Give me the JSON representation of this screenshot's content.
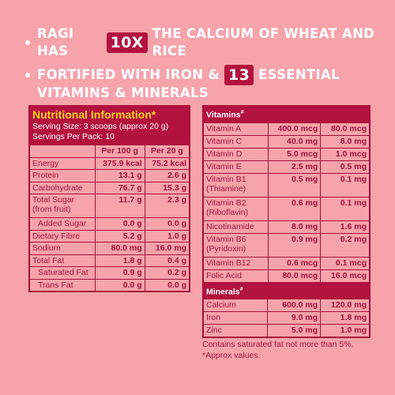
{
  "headline": {
    "line1_pre": "RAGI HAS",
    "line1_box": "10X",
    "line1_post": "THE CALCIUM OF WHEAT AND RICE",
    "line2_pre": "FORTIFIED WITH IRON &",
    "line2_box": "13",
    "line2_post": "ESSENTIAL",
    "line2_cont": "VITAMINS & MINERALS"
  },
  "nutrition": {
    "title": "Nutritional Information*",
    "serving_size": "Serving Size: 3 scoops (approx 20 g)",
    "servings_per_pack": "Servings Per Pack: 10",
    "columns": [
      "",
      "Per 100 g",
      "Per 20 g"
    ],
    "rows": [
      {
        "label": "Energy",
        "per100": "375.9 kcal",
        "per20": "75.2 kcal"
      },
      {
        "label": "Protein",
        "per100": "13.1 g",
        "per20": "2.6 g"
      },
      {
        "label": "Carbohydrate",
        "per100": "76.7 g",
        "per20": "15.3 g"
      },
      {
        "label": "Total Sugar (from fruit)",
        "per100": "11.7 g",
        "per20": "2.3 g"
      },
      {
        "label": "Added Sugar",
        "per100": "0.0 g",
        "per20": "0.0 g"
      },
      {
        "label": "Dietary Fibre",
        "per100": "5.2 g",
        "per20": "1.0 g"
      },
      {
        "label": "Sodium",
        "per100": "80.0 mg",
        "per20": "16.0 mg"
      },
      {
        "label": "Total Fat",
        "per100": "1.8 g",
        "per20": "0.4 g"
      },
      {
        "label": "Saturated Fat",
        "per100": "0.9 g",
        "per20": "0.2 g"
      },
      {
        "label": "Trans Fat",
        "per100": "0.0 g",
        "per20": "0.0 g"
      }
    ]
  },
  "vitamins": {
    "title": "Vitamins",
    "title_mark": "#",
    "rows": [
      {
        "label": "Vitamin A",
        "per100": "400.0 mcg",
        "per20": "80.0 mcg"
      },
      {
        "label": "Vitamin C",
        "per100": "40.0 mg",
        "per20": "8.0 mg"
      },
      {
        "label": "Vitamin D",
        "per100": "5.0 mcg",
        "per20": "1.0 mcg"
      },
      {
        "label": "Vitamin E",
        "per100": "2.5 mg",
        "per20": "0.5 mg"
      },
      {
        "label": "Vitamin B1 (Thiamine)",
        "per100": "0.5 mg",
        "per20": "0.1 mg"
      },
      {
        "label": "Vitamin B2 (Riboflavin)",
        "per100": "0.6 mg",
        "per20": "0.1 mg"
      },
      {
        "label": "Nicotinamide",
        "per100": "8.0 mg",
        "per20": "1.6 mg"
      },
      {
        "label": "Vitamin B6 (Pyridoxin)",
        "per100": "0.9 mg",
        "per20": "0.2 mg"
      },
      {
        "label": "Vitamin B12",
        "per100": "0.6 mcg",
        "per20": "0.1 mcg"
      },
      {
        "label": "Folic Acid",
        "per100": "80.0 mcg",
        "per20": "16.0 mcg"
      }
    ]
  },
  "minerals": {
    "title": "Minerals",
    "title_mark": "#",
    "rows": [
      {
        "label": "Calcium",
        "per100": "600.0 mg",
        "per20": "120.0 mg"
      },
      {
        "label": "Iron",
        "per100": "9.0 mg",
        "per20": "1.8 mg"
      },
      {
        "label": "Zinc",
        "per100": "5.0 mg",
        "per20": "1.0 mg"
      }
    ]
  },
  "notes": {
    "line1": "Contains saturated fat not more than 5%.",
    "line2": "*Approx values."
  }
}
